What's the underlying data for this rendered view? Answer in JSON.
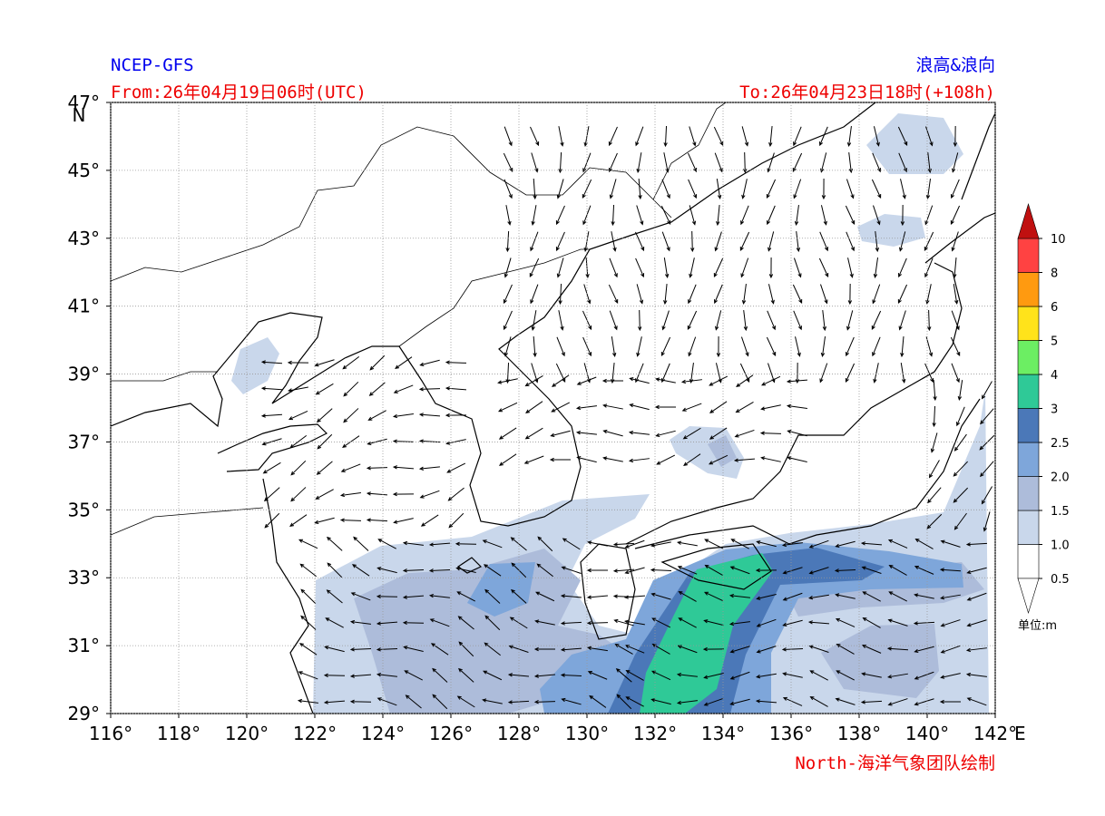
{
  "map": {
    "title_left": "NCEP-GFS",
    "title_right": "浪高&浪向",
    "from": "From:26年04月19日06时(UTC)",
    "to": "To:26年04月23日18时(+108h)",
    "credit": "North-海洋气象团队绘制",
    "xlim": [
      116,
      142
    ],
    "ylim": [
      29,
      47
    ],
    "xticks": [
      {
        "value": 116,
        "label": "116°"
      },
      {
        "value": 118,
        "label": "118°"
      },
      {
        "value": 120,
        "label": "120°"
      },
      {
        "value": 122,
        "label": "122°"
      },
      {
        "value": 124,
        "label": "124°"
      },
      {
        "value": 126,
        "label": "126°"
      },
      {
        "value": 128,
        "label": "128°"
      },
      {
        "value": 130,
        "label": "130°"
      },
      {
        "value": 132,
        "label": "132°"
      },
      {
        "value": 134,
        "label": "134°"
      },
      {
        "value": 136,
        "label": "136°"
      },
      {
        "value": 138,
        "label": "138°"
      },
      {
        "value": 140,
        "label": "140°"
      },
      {
        "value": 142,
        "label": "142°"
      }
    ],
    "x_axis_label": "E",
    "yticks": [
      {
        "value": 29,
        "label": "29°"
      },
      {
        "value": 31,
        "label": "31°"
      },
      {
        "value": 33,
        "label": "33°"
      },
      {
        "value": 35,
        "label": "35°"
      },
      {
        "value": 37,
        "label": "37°"
      },
      {
        "value": 39,
        "label": "39°"
      },
      {
        "value": 41,
        "label": "41°"
      },
      {
        "value": 43,
        "label": "43°"
      },
      {
        "value": 45,
        "label": "45°"
      },
      {
        "value": 47,
        "label": "47°"
      }
    ],
    "y_axis_label": "N",
    "grid": true,
    "colorbar": {
      "levels": [
        {
          "value": 0.5,
          "label": "0.5"
        },
        {
          "value": 1,
          "label": "1.0"
        },
        {
          "value": 1.5,
          "label": "1.5"
        },
        {
          "value": 2,
          "label": "2.0"
        },
        {
          "value": 2.5,
          "label": "2.5"
        },
        3,
        4,
        5,
        6,
        8,
        10
      ],
      "colors": [
        "#ffffff",
        "#c9d7eb",
        "#adbcda",
        "#7ea6da",
        "#4b78b8",
        "#2fc997",
        "#6cee63",
        "#ffe31b",
        "#ff9a10",
        "#ff4242"
      ],
      "over_color": "#c01010",
      "under_color": "#ffffff",
      "unit": "单位:m"
    }
  }
}
